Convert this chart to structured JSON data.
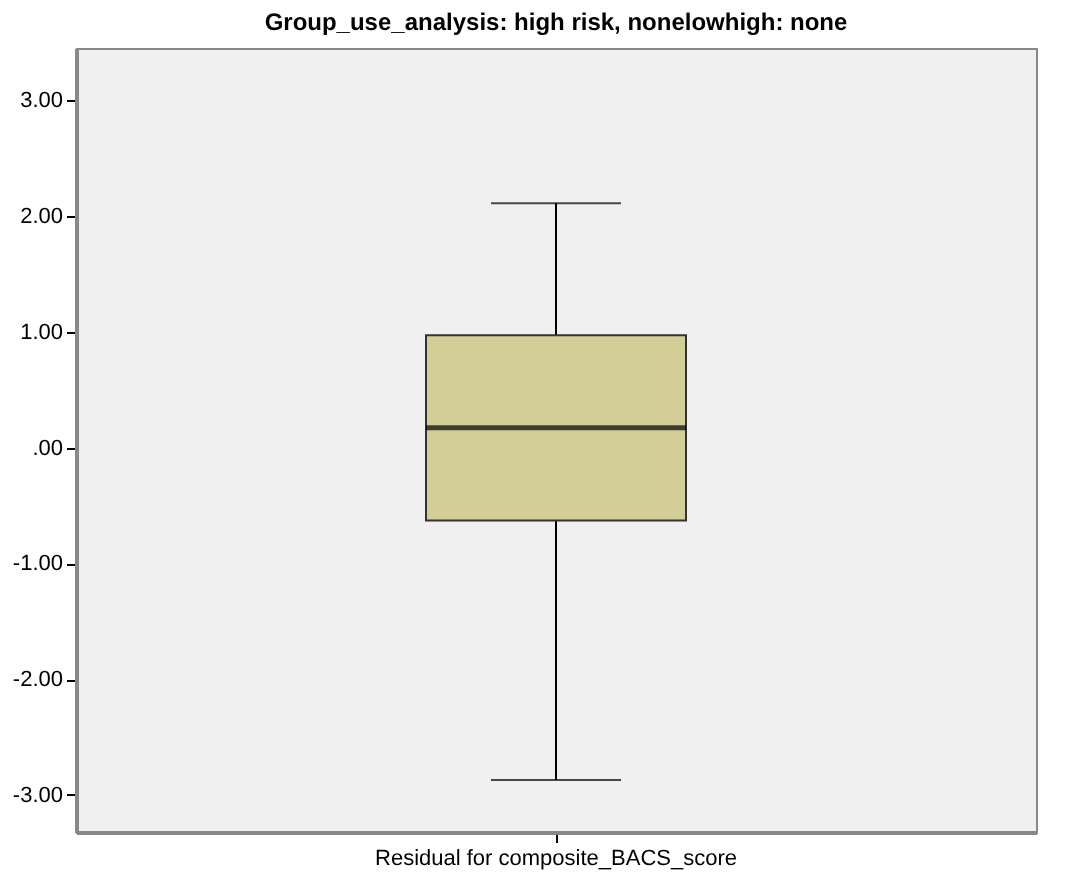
{
  "chart_data": {
    "type": "box",
    "title": "Group_use_analysis: high risk, nonelowhigh: none",
    "categories": [
      "Residual for composite_BACS_score"
    ],
    "boxes": [
      {
        "low": -2.87,
        "q1": -0.63,
        "median": 0.17,
        "q3": 0.97,
        "high": 2.11
      }
    ],
    "color": "#d3ce97",
    "ylim": [
      -3.32,
      3.45
    ],
    "yticks": [
      {
        "value": -3,
        "label": "-3.00"
      },
      {
        "value": -2,
        "label": "-2.00"
      },
      {
        "value": -1,
        "label": "-1.00"
      },
      {
        "value": 0,
        "label": ".00"
      },
      {
        "value": 1,
        "label": "1.00"
      },
      {
        "value": 2,
        "label": "2.00"
      },
      {
        "value": 3,
        "label": "3.00"
      }
    ],
    "grid": false
  }
}
